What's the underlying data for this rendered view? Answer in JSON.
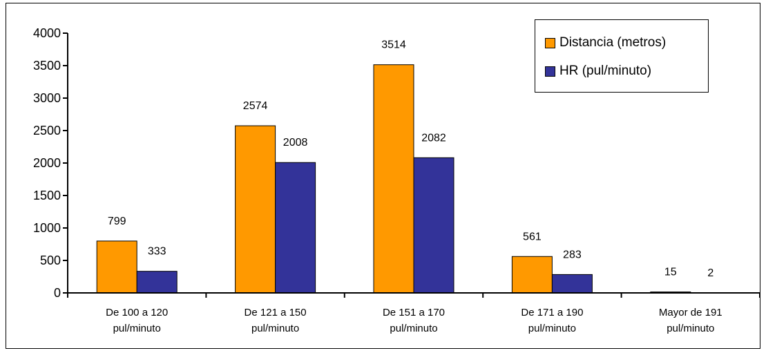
{
  "chart_data": {
    "type": "bar",
    "categories": [
      [
        "De 100 a 120",
        "pul/minuto"
      ],
      [
        "De 121 a 150",
        "pul/minuto"
      ],
      [
        "De 151 a 170",
        "pul/minuto"
      ],
      [
        "De 171 a 190",
        "pul/minuto"
      ],
      [
        "Mayor de 191",
        "pul/minuto"
      ]
    ],
    "series": [
      {
        "name": "Distancia (metros)",
        "color": "#FF9900",
        "values": [
          799,
          2574,
          3514,
          561,
          15
        ]
      },
      {
        "name": "HR (pul/minuto)",
        "color": "#333399",
        "values": [
          333,
          2008,
          2082,
          283,
          2
        ]
      }
    ],
    "ylim": [
      0,
      4000
    ],
    "yticks": [
      "0",
      "500",
      "1000",
      "1500",
      "2000",
      "2500",
      "3000",
      "3500",
      "4000"
    ],
    "data_labels": true,
    "grid": false,
    "legend_position": "top-right"
  }
}
